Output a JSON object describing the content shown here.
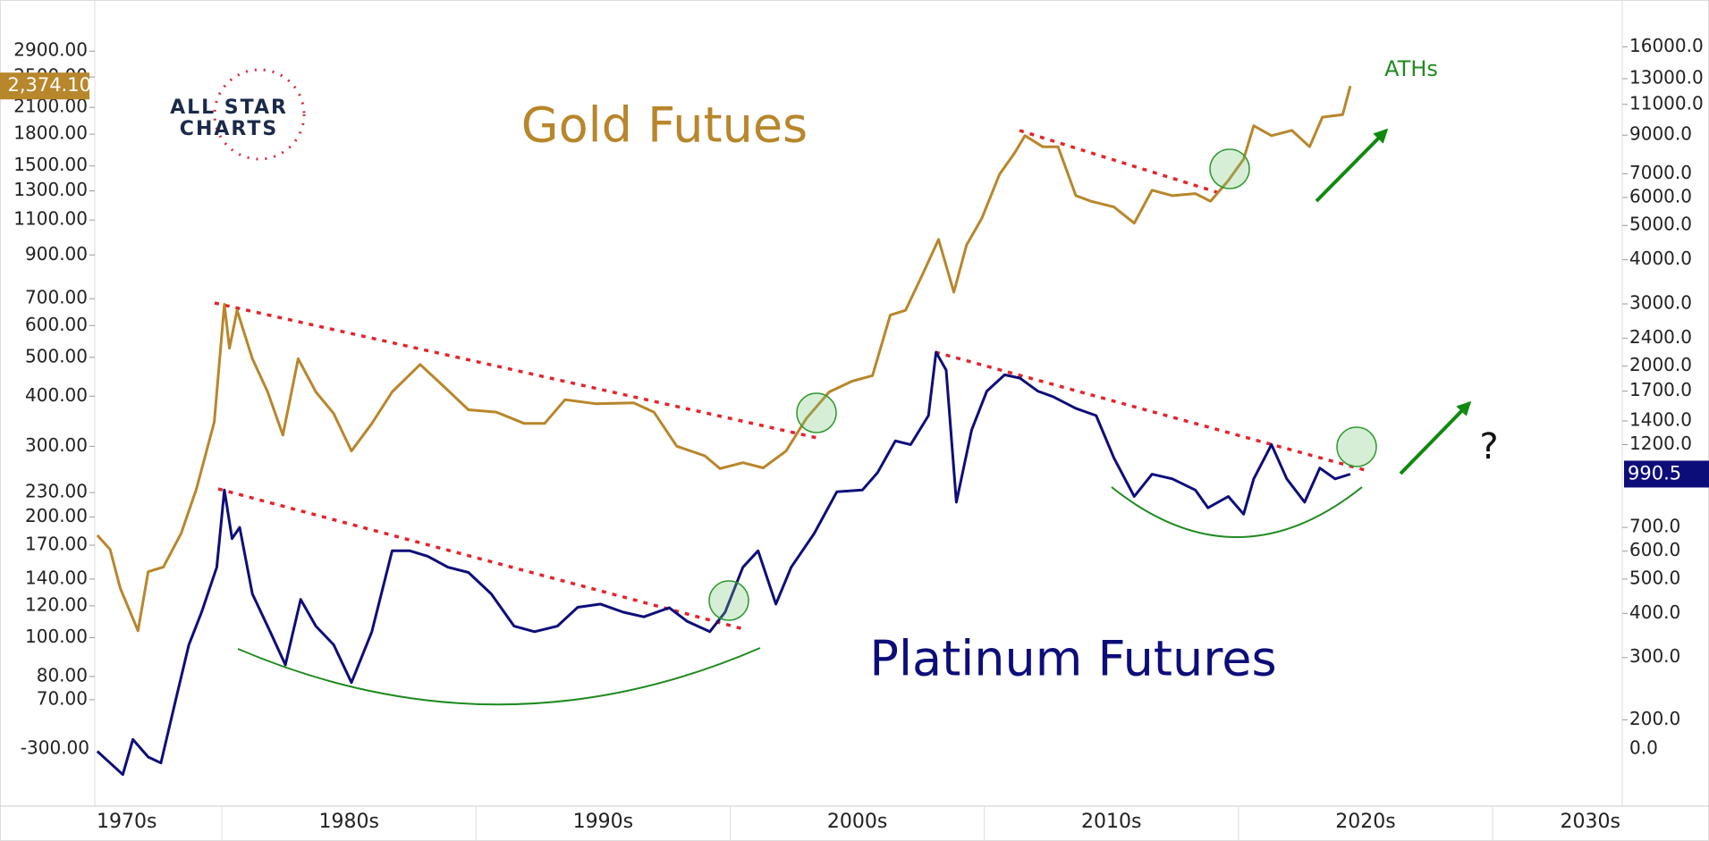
{
  "chart_data": {
    "type": "line",
    "logo": {
      "line1": "ALL STAR",
      "line2": "CHARTS"
    },
    "annotations": [
      "ATHs",
      "?",
      "-300.00",
      "0.0"
    ],
    "x_labels": [
      "1970s",
      "1980s",
      "1990s",
      "2000s",
      "2010s",
      "2020s",
      "2030s"
    ],
    "xlim": [
      1975,
      2035.1
    ],
    "xticks": [
      1980,
      1990,
      2000,
      2010,
      2020,
      2030
    ],
    "log_scale": true,
    "ylim": [
      38,
      3890
    ],
    "yticks": [
      {
        "value": 2900,
        "label": "2900.00"
      },
      {
        "value": 2500,
        "label": "2500.00"
      },
      {
        "value": 2100,
        "label": "2100.00"
      },
      {
        "value": 1800,
        "label": "1800.00"
      },
      {
        "value": 1500,
        "label": "1500.00"
      },
      {
        "value": 1300,
        "label": "1300.00"
      },
      {
        "value": 1100,
        "label": "1100.00"
      },
      {
        "value": 900,
        "label": "900.00"
      },
      {
        "value": 700,
        "label": "700.00"
      },
      {
        "value": 600,
        "label": "600.00"
      },
      {
        "value": 500,
        "label": "500.00"
      },
      {
        "value": 400,
        "label": "400.00"
      },
      {
        "value": 300,
        "label": "300.00"
      },
      {
        "value": 230,
        "label": "230.00"
      },
      {
        "value": 200,
        "label": "200.00"
      },
      {
        "value": 170,
        "label": "170.00"
      },
      {
        "value": 140,
        "label": "140.00"
      },
      {
        "value": 120,
        "label": "120.00"
      },
      {
        "value": 100,
        "label": "100.00"
      },
      {
        "value": 80,
        "label": "80.00"
      },
      {
        "value": 70,
        "label": "70.00"
      }
    ],
    "y2lim": [
      114,
      21700
    ],
    "y2ticks": [
      {
        "value": 16000,
        "label": "16000.0"
      },
      {
        "value": 13000,
        "label": "13000.0"
      },
      {
        "value": 11000,
        "label": "11000.0"
      },
      {
        "value": 9000,
        "label": "9000.0"
      },
      {
        "value": 7000,
        "label": "7000.0"
      },
      {
        "value": 6000,
        "label": "6000.0"
      },
      {
        "value": 5000,
        "label": "5000.0"
      },
      {
        "value": 4000,
        "label": "4000.0"
      },
      {
        "value": 3000,
        "label": "3000.0"
      },
      {
        "value": 2400,
        "label": "2400.0"
      },
      {
        "value": 2000,
        "label": "2000.0"
      },
      {
        "value": 1700,
        "label": "1700.0"
      },
      {
        "value": 1400,
        "label": "1400.0"
      },
      {
        "value": 1200,
        "label": "1200.0"
      },
      {
        "value": 700,
        "label": "700.0"
      },
      {
        "value": 600,
        "label": "600.0"
      },
      {
        "value": 500,
        "label": "500.0"
      },
      {
        "value": 400,
        "label": "400.0"
      },
      {
        "value": 300,
        "label": "300.0"
      },
      {
        "value": 200,
        "label": "200.0"
      }
    ],
    "series": [
      {
        "name": "Gold Futues",
        "color": "#b8862b",
        "axis": "y",
        "last_value_label": "2,374.10",
        "x": [
          1975.1,
          1975.6,
          1976.0,
          1976.7,
          1977.1,
          1977.7,
          1978.4,
          1979.0,
          1979.7,
          1980.1,
          1980.3,
          1980.6,
          1981.2,
          1981.8,
          1982.4,
          1983.0,
          1983.7,
          1984.4,
          1985.1,
          1985.9,
          1986.7,
          1987.8,
          1988.7,
          1989.7,
          1990.8,
          1991.9,
          1992.7,
          1993.5,
          1994.7,
          1996.2,
          1997.0,
          1997.9,
          1999.0,
          1999.6,
          2000.5,
          2001.3,
          2002.2,
          2003.0,
          2003.9,
          2004.8,
          2005.6,
          2006.3,
          2006.9,
          2007.6,
          2008.2,
          2008.8,
          2009.3,
          2009.9,
          2010.6,
          2011.2,
          2011.6,
          2012.3,
          2012.9,
          2013.6,
          2014.2,
          2015.1,
          2015.9,
          2016.6,
          2017.4,
          2018.3,
          2018.9,
          2019.6,
          2020.2,
          2020.6,
          2021.3,
          2022.1,
          2022.8,
          2023.3,
          2024.1,
          2024.4
        ],
        "values": [
          180,
          166,
          133,
          104,
          146,
          150,
          182,
          235,
          345,
          678,
          527,
          655,
          496,
          410,
          320,
          496,
          410,
          362,
          292,
          342,
          410,
          480,
          425,
          370,
          365,
          342,
          342,
          392,
          383,
          385,
          365,
          300,
          284,
          264,
          273,
          265,
          292,
          352,
          410,
          436,
          450,
          637,
          655,
          813,
          984,
          727,
          953,
          1110,
          1430,
          1620,
          1785,
          1675,
          1675,
          1265,
          1225,
          1185,
          1080,
          1305,
          1265,
          1280,
          1225,
          1380,
          1560,
          1890,
          1785,
          1840,
          1675,
          1985,
          2015,
          2374.1
        ]
      },
      {
        "name": "Platinum Futures",
        "color": "#0d0d7a",
        "axis": "y2",
        "last_value_label": "990.5",
        "x": [
          1975.1,
          1975.6,
          1976.1,
          1976.5,
          1977.1,
          1977.6,
          1978.2,
          1978.7,
          1979.2,
          1979.8,
          1980.1,
          1980.4,
          1980.7,
          1981.2,
          1981.9,
          1982.5,
          1983.1,
          1983.7,
          1984.4,
          1985.1,
          1985.9,
          1986.7,
          1987.4,
          1988.1,
          1988.9,
          1989.7,
          1990.6,
          1991.5,
          1992.3,
          1993.2,
          1994.0,
          1994.9,
          1995.8,
          1996.6,
          1997.6,
          1998.3,
          1999.2,
          1999.8,
          2000.5,
          2001.1,
          2001.8,
          2002.4,
          2003.3,
          2004.2,
          2005.2,
          2005.8,
          2006.5,
          2007.1,
          2007.8,
          2008.1,
          2008.5,
          2008.9,
          2009.5,
          2010.1,
          2010.8,
          2011.4,
          2012.1,
          2012.7,
          2013.6,
          2014.4,
          2015.1,
          2015.9,
          2016.6,
          2017.4,
          2018.3,
          2018.8,
          2019.6,
          2020.2,
          2020.6,
          2021.3,
          2021.9,
          2022.6,
          2023.2,
          2023.8,
          2024.4
        ],
        "values": [
          163,
          151,
          140,
          176,
          157,
          151,
          230,
          326,
          403,
          540,
          893,
          651,
          700,
          454,
          355,
          286,
          438,
          368,
          326,
          255,
          355,
          601,
          601,
          580,
          540,
          522,
          454,
          368,
          355,
          368,
          416,
          425,
          403,
          391,
          415,
          380,
          355,
          403,
          540,
          601,
          425,
          540,
          672,
          883,
          893,
          1000,
          1230,
          1200,
          1450,
          2190,
          1950,
          825,
          1320,
          1700,
          1890,
          1850,
          1700,
          1640,
          1520,
          1450,
          1100,
          856,
          990,
          960,
          893,
          795,
          856,
          763,
          960,
          1200,
          960,
          825,
          1030,
          960,
          990.5
        ]
      }
    ]
  }
}
